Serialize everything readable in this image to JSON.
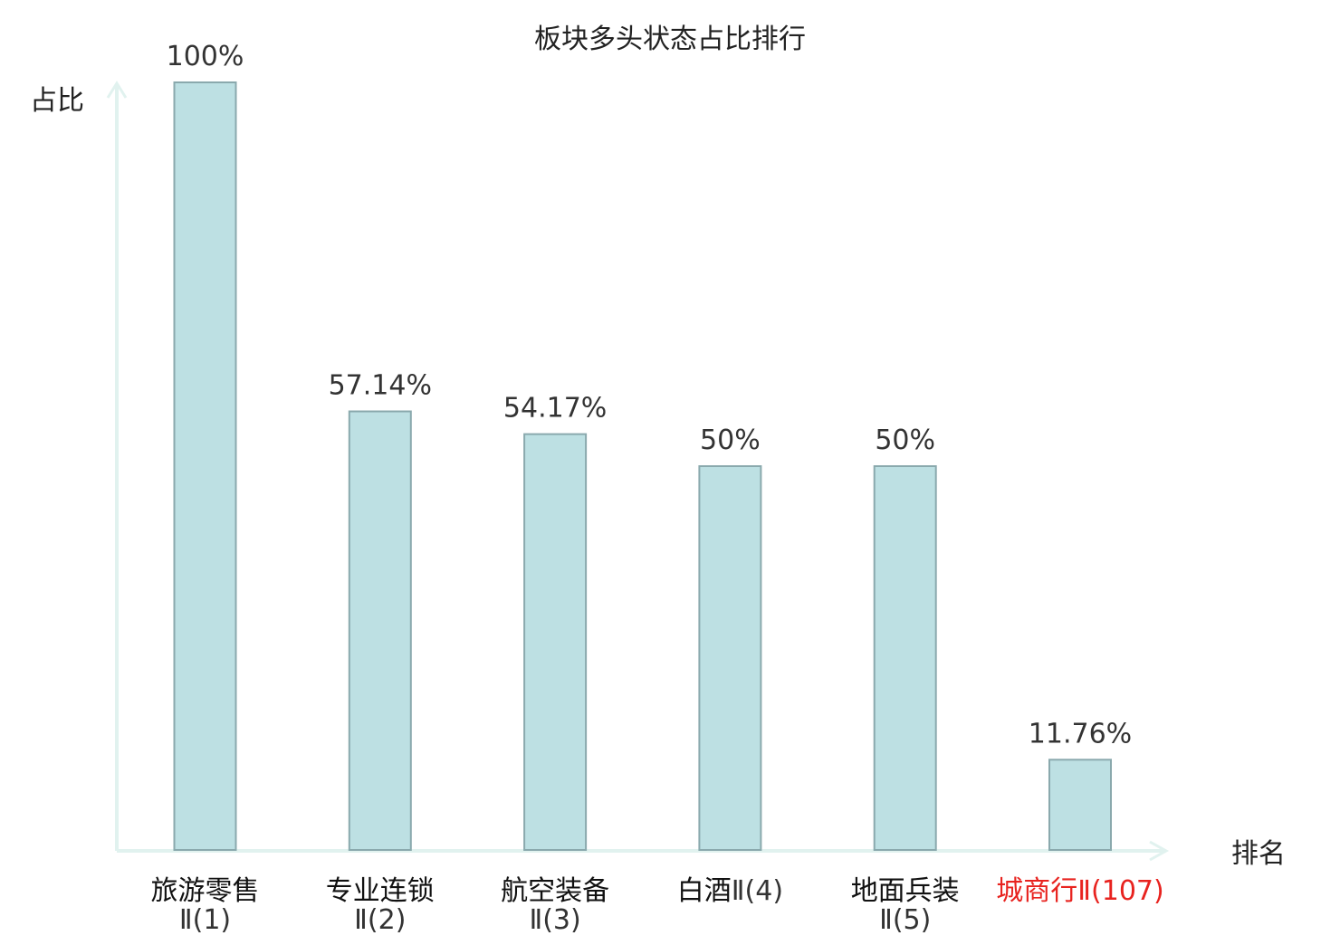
{
  "chart_data": {
    "type": "bar",
    "title": "板块多头状态占比排行",
    "ylabel": "占比",
    "xlabel": "排名",
    "ylim": [
      0,
      100
    ],
    "grid": false,
    "categories": [
      {
        "name": "旅游零售",
        "suffix": "Ⅱ(1)",
        "highlight": false
      },
      {
        "name": "专业连锁",
        "suffix": "Ⅱ(2)",
        "highlight": false
      },
      {
        "name": "航空装备",
        "suffix": "Ⅱ(3)",
        "highlight": false
      },
      {
        "name": "白酒",
        "suffix": "Ⅱ(4)",
        "highlight": false
      },
      {
        "name": "地面兵装",
        "suffix": "Ⅱ(5)",
        "highlight": false
      },
      {
        "name": "城商行",
        "suffix": "Ⅱ(107)",
        "highlight": true
      }
    ],
    "values": [
      100,
      57.14,
      54.17,
      50,
      50,
      11.76
    ],
    "value_labels": [
      "100%",
      "57.14%",
      "54.17%",
      "50%",
      "50%",
      "11.76%"
    ]
  },
  "colors": {
    "bar_fill": "#bde0e3",
    "bar_stroke": "#8aa9ad",
    "axis": "#e1f2ef",
    "highlight": "#e8231f"
  }
}
